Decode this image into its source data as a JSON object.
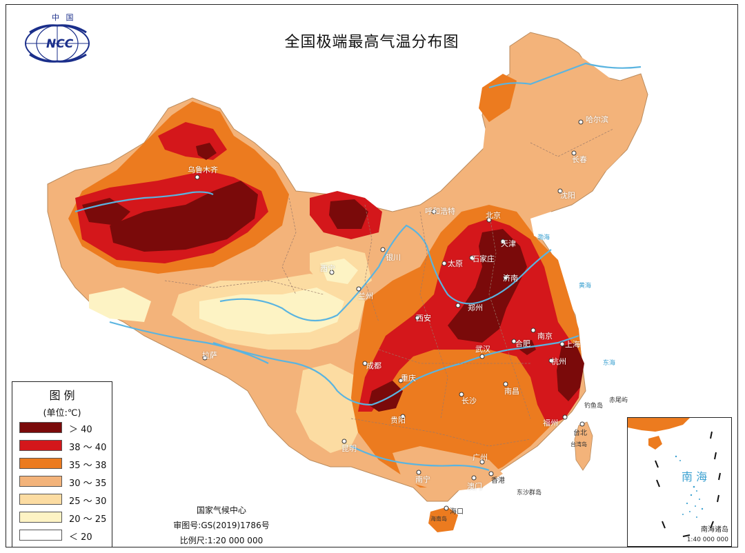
{
  "title": "全国极端最高气温分布图",
  "logo": {
    "top_text": "中 国",
    "text": "NCC"
  },
  "colors": {
    "gt40": "#7a0a0a",
    "c38_40": "#d4171b",
    "c35_38": "#ec7b1f",
    "c30_35": "#f3b37a",
    "c25_30": "#fcdca2",
    "c20_25": "#fdf3c4",
    "lt20": "#ffffff",
    "river": "#5ab4e0",
    "sea": "#3aa0d0"
  },
  "legend": {
    "title": "图 例",
    "unit": "(单位:℃)",
    "items": [
      {
        "label": "＞ 40",
        "color": "#7a0a0a"
      },
      {
        "label": "38 ～ 40",
        "color": "#d4171b"
      },
      {
        "label": "35 ～ 38",
        "color": "#ec7b1f"
      },
      {
        "label": "30 ～ 35",
        "color": "#f3b37a"
      },
      {
        "label": "25 ～ 30",
        "color": "#fcdca2"
      },
      {
        "label": "20 ～ 25",
        "color": "#fdf3c4"
      },
      {
        "label": "＜ 20",
        "color": "#ffffff"
      }
    ]
  },
  "credits": {
    "org": "国家气候中心",
    "approval": "审图号:GS(2019)1786号",
    "scale": "比例尺:1:20 000 000"
  },
  "cities": {
    "harbin": "哈尔滨",
    "changchun": "长春",
    "shenyang": "沈阳",
    "urumqi": "乌鲁木齐",
    "hohhot": "呼和浩特",
    "beijing": "北京",
    "tianjin": "天津",
    "shijiazhuang": "石家庄",
    "taiyuan": "太原",
    "yinchuan": "银川",
    "xining": "西宁",
    "lanzhou": "兰州",
    "jinan": "济南",
    "zhengzhou": "郑州",
    "xian": "西安",
    "nanjing": "南京",
    "hefei": "合肥",
    "shanghai": "上海",
    "hangzhou": "杭州",
    "wuhan": "武汉",
    "chengdu": "成都",
    "chongqing": "重庆",
    "lhasa": "拉萨",
    "changsha": "长沙",
    "nanchang": "南昌",
    "guiyang": "贵阳",
    "fuzhou": "福州",
    "taibei": "台北",
    "kunming": "昆明",
    "guangzhou": "广州",
    "nanning": "南宁",
    "aomen": "澳门",
    "xianggang": "香港",
    "haikou": "海口"
  },
  "seas": {
    "bohai": "渤海",
    "huanghai": "黄海",
    "donghai": "东海",
    "diaoyu": "钓鱼岛",
    "chiwei": "赤尾屿",
    "dongsha": "东沙群岛",
    "taiwan": "台湾岛",
    "hainan": "海南岛"
  },
  "inset": {
    "title": "南 海",
    "caption": "南海诸岛",
    "scale": "1:40 000 000"
  }
}
